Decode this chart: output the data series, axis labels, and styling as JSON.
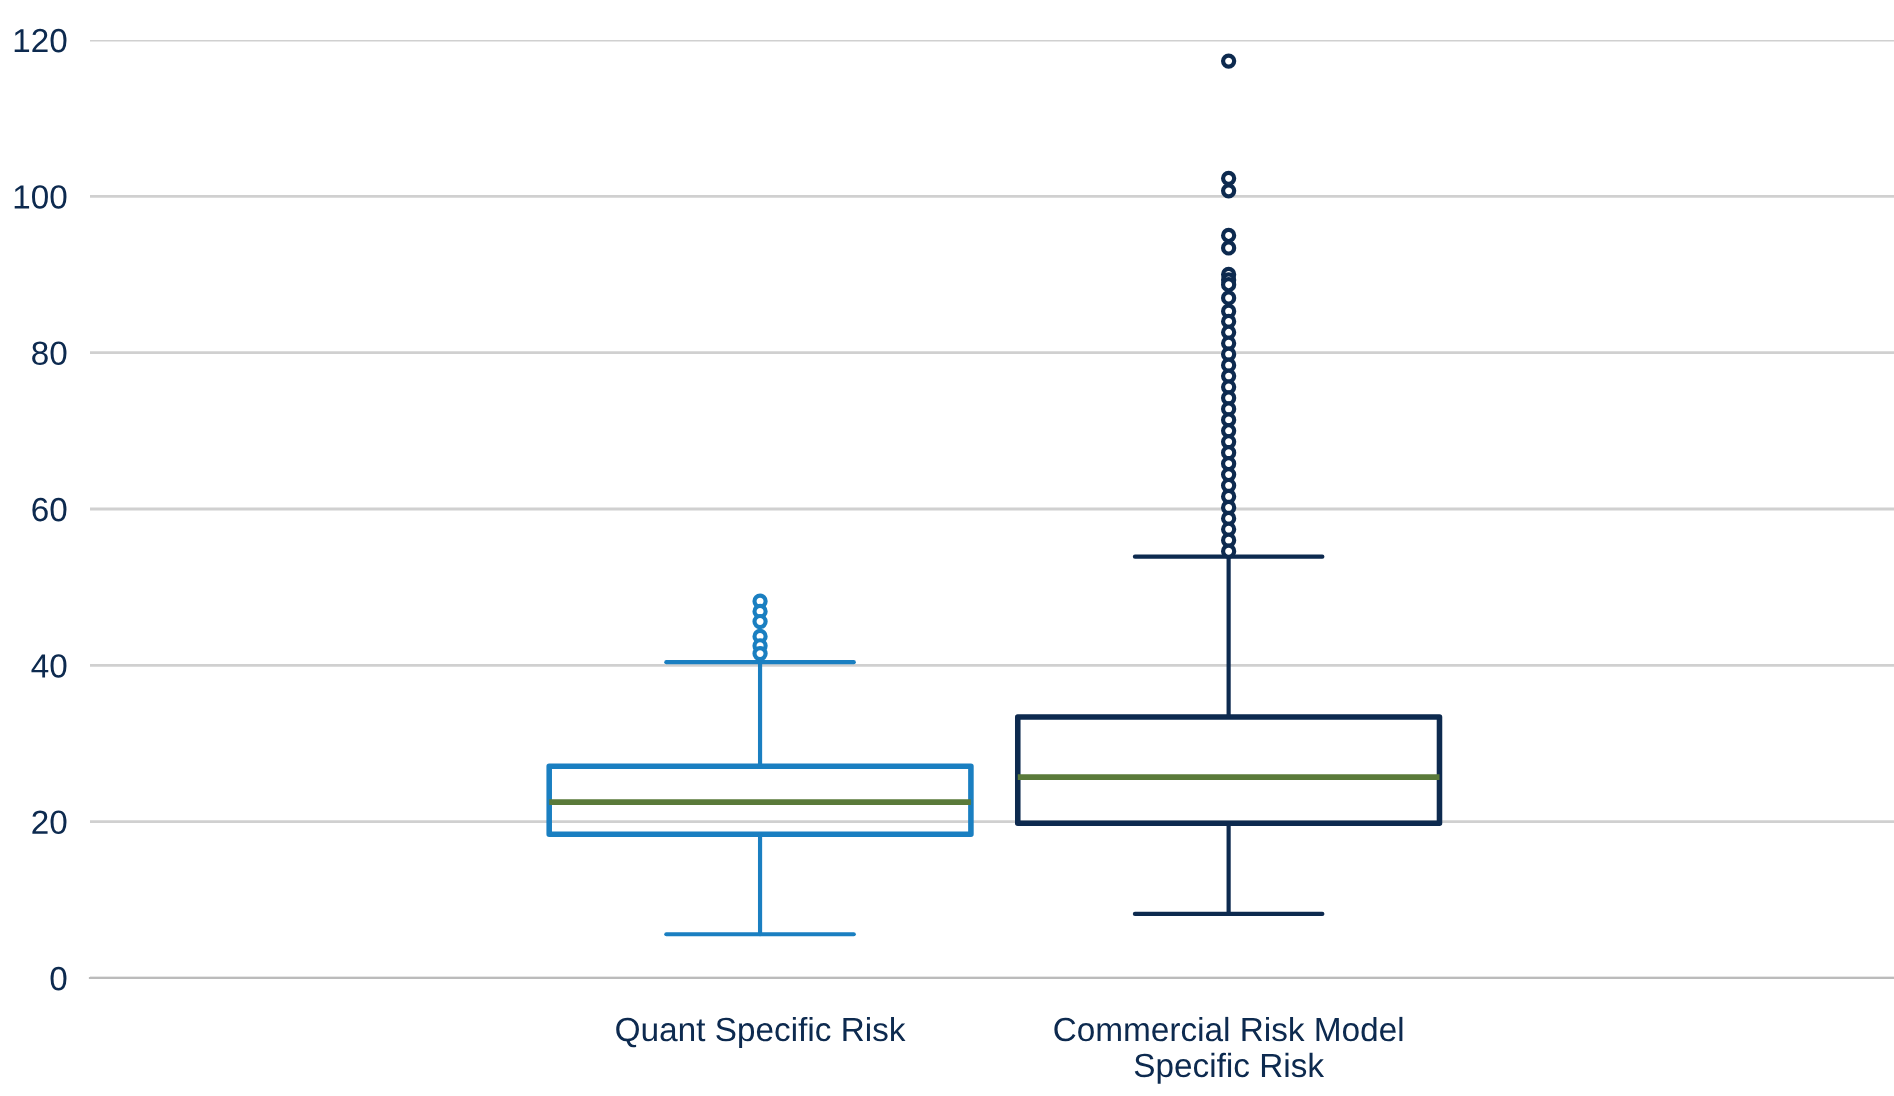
{
  "chart_data": {
    "type": "box",
    "categories": [
      "Quant Specific Risk",
      "Commercial Risk Model\nSpecific Risk"
    ],
    "colors": [
      "#1a7fc1",
      "#0d2a4f"
    ],
    "boxes": [
      {
        "low": 5.6,
        "q1": 18.4,
        "median": 22.5,
        "q3": 27.1,
        "high": 40.4,
        "outliers": [
          48.2,
          46.9,
          45.6,
          43.7,
          42.5,
          41.5
        ]
      },
      {
        "low": 8.2,
        "q1": 19.8,
        "median": 25.7,
        "q3": 33.4,
        "high": 53.9,
        "outliers": [
          117.3,
          102.3,
          100.7,
          95.0,
          93.4,
          90.0,
          89.3,
          88.7,
          87.0,
          85.3,
          84.0,
          82.6,
          81.2,
          79.8,
          78.4,
          77.0,
          75.6,
          74.2,
          72.8,
          71.4,
          70.0,
          68.6,
          67.2,
          65.8,
          64.4,
          63.0,
          61.6,
          60.2,
          58.8,
          57.4,
          56.0,
          54.6
        ]
      }
    ],
    "ylim": [
      0,
      120
    ],
    "yticks": [
      0,
      20,
      40,
      60,
      80,
      100,
      120
    ],
    "grid": "y"
  }
}
